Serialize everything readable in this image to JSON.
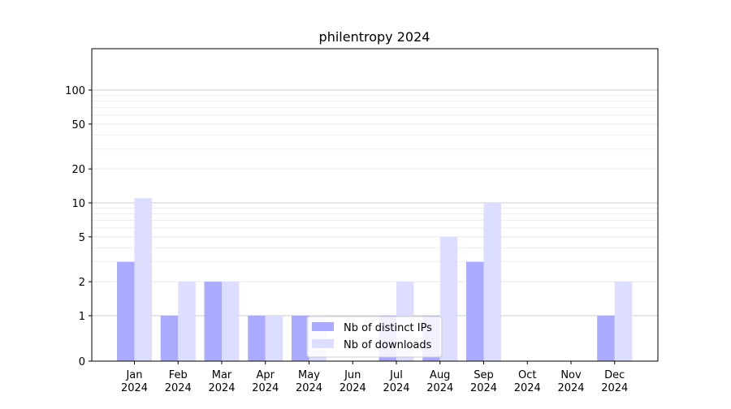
{
  "chart_data": {
    "type": "bar",
    "title": "philentropy 2024",
    "xlabel": "",
    "ylabel": "",
    "y_scale": "symlog",
    "y_ticks": [
      0,
      1,
      2,
      5,
      10,
      20,
      50,
      100
    ],
    "y_tick_labels": [
      "0",
      "1",
      "2",
      "5",
      "10",
      "20",
      "50",
      "100"
    ],
    "categories": [
      "Jan\n2024",
      "Feb\n2024",
      "Mar\n2024",
      "Apr\n2024",
      "May\n2024",
      "Jun\n2024",
      "Jul\n2024",
      "Aug\n2024",
      "Sep\n2024",
      "Oct\n2024",
      "Nov\n2024",
      "Dec\n2024"
    ],
    "series": [
      {
        "name": "Nb of distinct IPs",
        "color": "#aaaaff",
        "values": [
          3,
          1,
          2,
          1,
          1,
          0,
          1,
          1,
          3,
          0,
          0,
          1
        ]
      },
      {
        "name": "Nb of downloads",
        "color": "#ddddff",
        "values": [
          11,
          2,
          2,
          1,
          1,
          0,
          2,
          5,
          10,
          0,
          0,
          2
        ]
      }
    ],
    "legend_position": "bottom-center",
    "grid": true
  }
}
